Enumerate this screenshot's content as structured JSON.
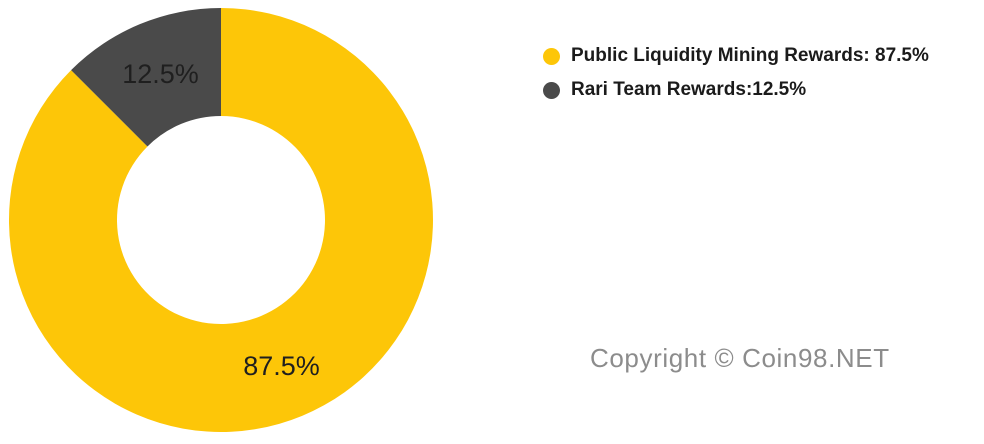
{
  "chart_data": {
    "type": "pie",
    "donut": true,
    "title": "",
    "inner_radius_ratio": 0.49,
    "start_angle_deg": 0,
    "legend_position": "right",
    "background": "#FFFFFF",
    "slice_label_color": "#1F1F1F",
    "slices": [
      {
        "label": "Public Liquidity Mining Rewards",
        "value": 87.5,
        "pct_label": "87.5%",
        "color": "#FDC608"
      },
      {
        "label": "Rari Team Rewards",
        "value": 12.5,
        "pct_label": "12.5%",
        "color": "#4A4A4A"
      }
    ]
  },
  "legend": {
    "items": [
      {
        "text": "Public Liquidity Mining Rewards: 87.5%",
        "color": "#FDC608"
      },
      {
        "text": "Rari Team Rewards:12.5%",
        "color": "#4A4A4A"
      }
    ]
  },
  "footer": {
    "copyright": "Copyright © Coin98.NET"
  },
  "colors": {
    "background": "#FFFFFF",
    "slice_label": "#1F1F1F",
    "legend_text": "#1B1B1B",
    "copyright_text": "#8C8C8C"
  }
}
